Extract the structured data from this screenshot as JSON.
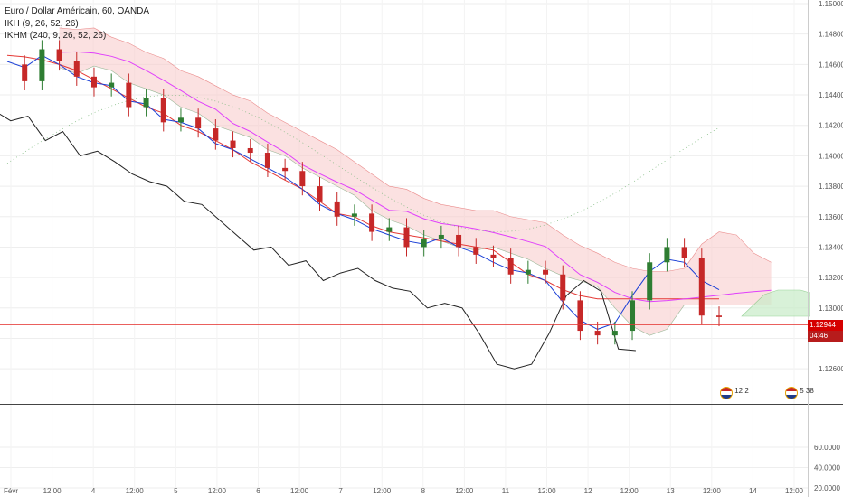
{
  "legend": {
    "title": "Euro / Dollar Américain, 60, OANDA",
    "ikh": "IKH (9, 26, 52, 26)",
    "ikhm": "IKHM (240, 9, 26, 52, 26)"
  },
  "last_price": {
    "value": "1.12944",
    "countdown": "04:46"
  },
  "events": [
    {
      "label": "12",
      "suffix": "2"
    },
    {
      "label": "5",
      "suffix": "38"
    }
  ],
  "colors": {
    "up": "#2e7d32",
    "down": "#c62828",
    "tenkan": "#1a3fd6",
    "kijun": "#e53935",
    "chikou": "#222222",
    "kumo_bear": "#f8c8c8",
    "kumo_bull": "#c8ecc8",
    "ikhm_kijun": "#e040fb",
    "last_price_line": "#e53935"
  },
  "chart_data": [
    {
      "type": "line",
      "subtype": "candlestick with Ichimoku Kinko Hyo overlay",
      "title": "Euro / Dollar Américain, 60, OANDA",
      "ylim": [
        1.125,
        1.15
      ],
      "y_ticks": [
        "1.15000",
        "1.14800",
        "1.14600",
        "1.14400",
        "1.14200",
        "1.14000",
        "1.13800",
        "1.13600",
        "1.13400",
        "1.13200",
        "1.13000",
        "1.12800",
        "1.12600"
      ],
      "x_ticks": [
        "Févr",
        "12:00",
        "4",
        "12:00",
        "5",
        "12:00",
        "6",
        "12:00",
        "7",
        "12:00",
        "8",
        "12:00",
        "11",
        "12:00",
        "12",
        "12:00",
        "13",
        "12:00",
        "14",
        "12:00"
      ],
      "grid": true,
      "series": [
        {
          "name": "EUR/USD close",
          "values": [
            1.146,
            1.1449,
            1.147,
            1.1462,
            1.1452,
            1.1445,
            1.1448,
            1.1432,
            1.1438,
            1.1422,
            1.1425,
            1.1418,
            1.141,
            1.1405,
            1.1402,
            1.1392,
            1.139,
            1.138,
            1.137,
            1.136,
            1.1362,
            1.135,
            1.1353,
            1.134,
            1.1345,
            1.1348,
            1.134,
            1.1335,
            1.1333,
            1.1322,
            1.1325,
            1.1322,
            1.1305,
            1.1285,
            1.1282,
            1.1285,
            1.1305,
            1.133,
            1.134,
            1.1333,
            1.1295,
            1.1294
          ]
        },
        {
          "name": "Tenkan",
          "values": [
            1.1462,
            1.1458,
            1.1466,
            1.146,
            1.1452,
            1.1448,
            1.1446,
            1.1436,
            1.1434,
            1.1424,
            1.1422,
            1.1418,
            1.1408,
            1.1404,
            1.1398,
            1.1392,
            1.1386,
            1.1378,
            1.1368,
            1.1362,
            1.1358,
            1.1352,
            1.1348,
            1.1344,
            1.1342,
            1.1346,
            1.134,
            1.1336,
            1.133,
            1.1325,
            1.1323,
            1.1318,
            1.1304,
            1.1292,
            1.1286,
            1.129,
            1.1308,
            1.1324,
            1.1332,
            1.133,
            1.1318,
            1.1312
          ]
        },
        {
          "name": "Kijun",
          "values": [
            1.1466,
            1.1465,
            1.1463,
            1.146,
            1.1456,
            1.145,
            1.1444,
            1.1438,
            1.1432,
            1.1428,
            1.142,
            1.1416,
            1.141,
            1.1404,
            1.1396,
            1.139,
            1.1384,
            1.1378,
            1.137,
            1.1362,
            1.136,
            1.1354,
            1.135,
            1.1348,
            1.1346,
            1.1344,
            1.1342,
            1.134,
            1.1338,
            1.133,
            1.1322,
            1.1318,
            1.1312,
            1.1308,
            1.1306,
            1.1306,
            1.1306,
            1.1306,
            1.1306,
            1.1306,
            1.1306,
            1.1306
          ]
        }
      ]
    },
    {
      "type": "line",
      "title": "",
      "ylim": [
        20,
        100
      ],
      "y_ticks": [
        "60.0000",
        "40.0000",
        "20.0000"
      ],
      "grid": true
    }
  ]
}
